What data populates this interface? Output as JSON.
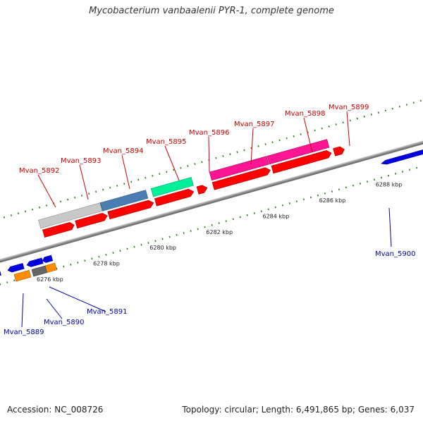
{
  "title": "Mycobacterium vanbaalenii PYR-1, complete genome",
  "footer": {
    "accession": "Accession: NC_008726",
    "summary": "Topology: circular; Length: 6,491,865 bp; Genes: 6,037"
  },
  "colors": {
    "forward_label": "#cc0000",
    "reverse_label": "#0000aa",
    "backbone": "#808080",
    "tick": "#2e7d1e"
  },
  "scale": {
    "ticks": [
      {
        "kbp": 6276,
        "label": "6276 kbp"
      },
      {
        "kbp": 6278,
        "label": "6278 kbp"
      },
      {
        "kbp": 6280,
        "label": "6280 kbp"
      },
      {
        "kbp": 6282,
        "label": "6282 kbp"
      },
      {
        "kbp": 6284,
        "label": "6284 kbp"
      },
      {
        "kbp": 6286,
        "label": "6286 kbp"
      },
      {
        "kbp": 6288,
        "label": "6288 kbp"
      }
    ]
  },
  "labels": {
    "forward": [
      "Mvan_5892",
      "Mvan_5893",
      "Mvan_5894",
      "Mvan_5895",
      "Mvan_5896",
      "Mvan_5897",
      "Mvan_5898",
      "Mvan_5899"
    ],
    "reverse": [
      "Mvan_5889",
      "Mvan_5890",
      "Mvan_5891",
      "Mvan_5900"
    ]
  }
}
